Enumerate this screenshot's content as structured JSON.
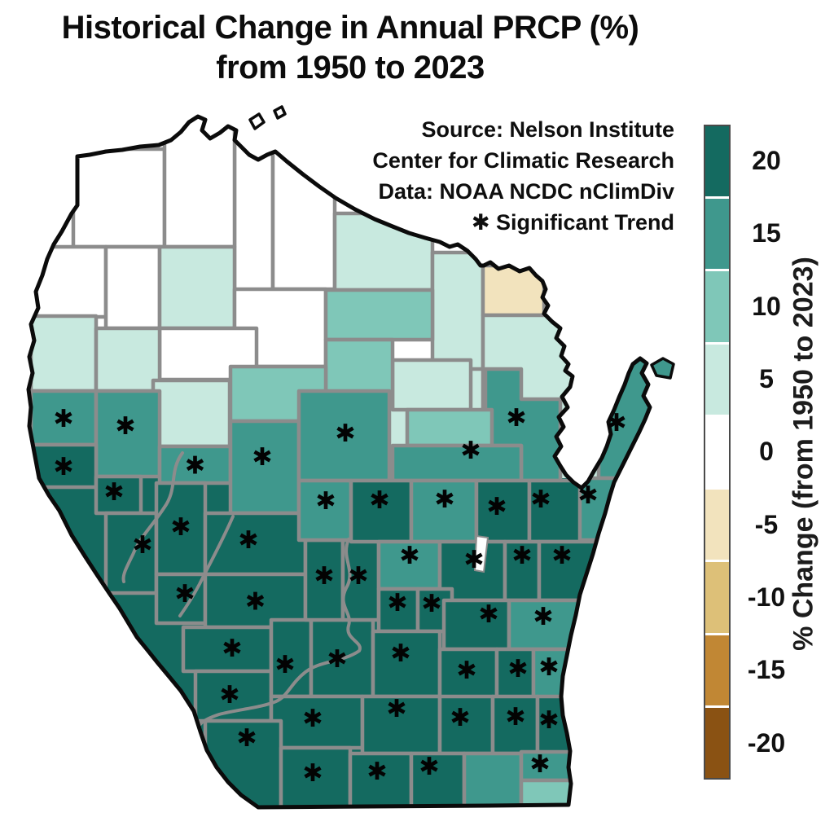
{
  "title": {
    "line1": "Historical Change in Annual PRCP (%)",
    "line2": "from 1950 to 2023"
  },
  "annotation": {
    "line1": "Source:  Nelson Institute",
    "line2": "Center for Climatic Research",
    "line3": "Data: NOAA NCDC nClimDiv",
    "significance_symbol": "✱",
    "significance_label": " Significant Trend"
  },
  "colorbar": {
    "title": "% Change (from 1950 to 2023)",
    "ticks": [
      "20",
      "15",
      "10",
      "5",
      "0",
      "-5",
      "-10",
      "-15",
      "-20"
    ],
    "colors": [
      "#146a60",
      "#3f988d",
      "#7fc7b8",
      "#c8e9df",
      "#ffffff",
      "#f2e3bd",
      "#ddc078",
      "#c18734",
      "#8a5213"
    ]
  },
  "chart_data": {
    "type": "choropleth",
    "region": "Wisconsin counties",
    "value_label": "% Change (from 1950 to 2023)",
    "legend_bins": [
      20,
      15,
      10,
      5,
      0,
      -5,
      -10,
      -15,
      -20
    ],
    "class_colors": {
      "20": "#146a60",
      "15": "#3f988d",
      "10": "#7fc7b8",
      "5": "#c8e9df",
      "0": "#ffffff",
      "-5": "#f2e3bd"
    },
    "border_color": "#8c8c8c",
    "outline_color": "#0b0b0b",
    "significant_symbol": "✱",
    "counties": [
      {
        "name": "Ashland",
        "value_bin": 0,
        "significant": false,
        "r": [
          288,
          148,
          47,
          242
        ]
      },
      {
        "name": "Douglas",
        "value_bin": 0,
        "significant": false,
        "r": [
          90,
          183,
          112,
          120
        ]
      },
      {
        "name": "Bayfield",
        "value_bin": 0,
        "significant": false,
        "r": [
          202,
          140,
          86,
          163
        ]
      },
      {
        "name": "Iron",
        "value_bin": 0,
        "significant": false,
        "r": [
          335,
          168,
          76,
          187
        ]
      },
      {
        "name": "Burnett",
        "value_bin": 0,
        "significant": false,
        "r": [
          38,
          303,
          92,
          86
        ]
      },
      {
        "name": "Washburn",
        "value_bin": 0,
        "significant": false,
        "r": [
          130,
          303,
          66,
          100
        ]
      },
      {
        "name": "Sawyer",
        "value_bin": 5,
        "significant": false,
        "r": [
          196,
          303,
          92,
          100
        ]
      },
      {
        "name": "Price",
        "value_bin": 0,
        "significant": false,
        "r": [
          288,
          355,
          112,
          95
        ]
      },
      {
        "name": "Rusk",
        "value_bin": 0,
        "significant": false,
        "r": [
          196,
          403,
          119,
          63
        ]
      },
      {
        "name": "Polk",
        "value_bin": 5,
        "significant": false,
        "r": [
          38,
          388,
          80,
          92
        ]
      },
      {
        "name": "Barron",
        "value_bin": 5,
        "significant": false,
        "r": [
          118,
          403,
          78,
          77
        ]
      },
      {
        "name": "Vilas",
        "value_bin": 5,
        "significant": false,
        "r": [
          411,
          262,
          120,
          94
        ]
      },
      {
        "name": "Forest",
        "value_bin": 5,
        "significant": false,
        "r": [
          531,
          310,
          62,
          143
        ]
      },
      {
        "name": "Oneida",
        "value_bin": 10,
        "significant": false,
        "r": [
          400,
          356,
          131,
          61
        ]
      },
      {
        "name": "Florence",
        "value_bin": -5,
        "significant": false,
        "r": [
          593,
          326,
          75,
          61
        ]
      },
      {
        "name": "Marinette",
        "value_bin": 5,
        "significant": false,
        "r": [
          593,
          387,
          115,
          138
        ]
      },
      {
        "name": "Oconto",
        "value_bin": 15,
        "significant": true,
        "p": "596,453 640,453 640,490 688,490 688,590 640,590 640,547 596,547",
        "s": [
          634,
          512
        ]
      },
      {
        "name": "Langlade",
        "value_bin": 5,
        "significant": false,
        "r": [
          482,
          442,
          96,
          61
        ]
      },
      {
        "name": "Lincoln",
        "value_bin": 10,
        "significant": false,
        "r": [
          400,
          417,
          82,
          85
        ]
      },
      {
        "name": "Taylor",
        "value_bin": 10,
        "significant": false,
        "r": [
          283,
          450,
          117,
          67
        ]
      },
      {
        "name": "Menominee",
        "value_bin": 10,
        "significant": false,
        "r": [
          500,
          503,
          104,
          44
        ]
      },
      {
        "name": "Shawano",
        "value_bin": 15,
        "significant": true,
        "r": [
          482,
          547,
          158,
          43
        ],
        "s": [
          578,
          552
        ]
      },
      {
        "name": "Chippewa",
        "value_bin": 5,
        "significant": false,
        "r": [
          188,
          467,
          94,
          81
        ]
      },
      {
        "name": "St. Croix",
        "value_bin": 15,
        "significant": true,
        "r": [
          38,
          480,
          80,
          66
        ]
      },
      {
        "name": "Dunn",
        "value_bin": 15,
        "significant": true,
        "r": [
          118,
          480,
          78,
          105
        ],
        "s": [
          154,
          522
        ]
      },
      {
        "name": "Eau Claire",
        "value_bin": 15,
        "significant": true,
        "r": [
          196,
          548,
          87,
          45
        ]
      },
      {
        "name": "Clark",
        "value_bin": 15,
        "significant": true,
        "r": [
          283,
          517,
          84,
          113
        ],
        "s": [
          322,
          560
        ]
      },
      {
        "name": "Marathon",
        "value_bin": 15,
        "significant": true,
        "r": [
          367,
          480,
          111,
          110
        ],
        "s": [
          424,
          531
        ]
      },
      {
        "name": "Pierce",
        "value_bin": 20,
        "significant": true,
        "r": [
          38,
          546,
          80,
          52
        ]
      },
      {
        "name": "Pepin",
        "value_bin": 20,
        "significant": true,
        "r": [
          118,
          585,
          55,
          45
        ],
        "s": [
          140,
          603
        ]
      },
      {
        "name": "Buffalo",
        "value_bin": 20,
        "significant": true,
        "r": [
          130,
          630,
          62,
          98
        ],
        "s": [
          175,
          668
        ]
      },
      {
        "name": "Trempealeau",
        "value_bin": 20,
        "significant": true,
        "r": [
          192,
          593,
          60,
          112
        ],
        "s": [
          222,
          646
        ]
      },
      {
        "name": "Jackson",
        "value_bin": 20,
        "significant": true,
        "r": [
          252,
          630,
          123,
          75
        ],
        "s": [
          305,
          662
        ]
      },
      {
        "name": "La Crosse",
        "value_bin": 20,
        "significant": true,
        "r": [
          192,
          705,
          60,
          60
        ],
        "s": [
          227,
          728
        ]
      },
      {
        "name": "Monroe",
        "value_bin": 20,
        "significant": true,
        "r": [
          252,
          705,
          123,
          65
        ]
      },
      {
        "name": "Vernon",
        "value_bin": 20,
        "significant": true,
        "r": [
          225,
          770,
          108,
          54
        ],
        "s": [
          285,
          795
        ]
      },
      {
        "name": "Crawford",
        "value_bin": 20,
        "significant": true,
        "r": [
          240,
          824,
          93,
          61
        ],
        "s": [
          282,
          852
        ]
      },
      {
        "name": "Richland",
        "value_bin": 20,
        "significant": true,
        "r": [
          333,
          761,
          49,
          94
        ],
        "s": [
          350,
          815
        ]
      },
      {
        "name": "Sauk",
        "value_bin": 20,
        "significant": true,
        "r": [
          382,
          761,
          76,
          94
        ],
        "s": [
          414,
          808
        ]
      },
      {
        "name": "Juneau",
        "value_bin": 20,
        "significant": true,
        "r": [
          375,
          663,
          46,
          98
        ],
        "s": [
          398,
          706
        ]
      },
      {
        "name": "Adams",
        "value_bin": 20,
        "significant": true,
        "r": [
          421,
          663,
          44,
          98
        ],
        "s": [
          440,
          706
        ]
      },
      {
        "name": "Wood",
        "value_bin": 15,
        "significant": true,
        "r": [
          367,
          590,
          64,
          73
        ],
        "s": [
          400,
          614
        ]
      },
      {
        "name": "Portage",
        "value_bin": 20,
        "significant": true,
        "r": [
          431,
          590,
          74,
          75
        ],
        "s": [
          466,
          613
        ]
      },
      {
        "name": "Waupaca",
        "value_bin": 15,
        "significant": true,
        "r": [
          505,
          590,
          80,
          75
        ],
        "s": [
          546,
          612
        ]
      },
      {
        "name": "Outagamie",
        "value_bin": 20,
        "significant": true,
        "r": [
          585,
          590,
          65,
          75
        ],
        "s": [
          610,
          621
        ]
      },
      {
        "name": "Brown",
        "value_bin": 20,
        "significant": true,
        "r": [
          650,
          590,
          65,
          75
        ],
        "s": [
          664,
          612
        ]
      },
      {
        "name": "Door",
        "value_bin": 15,
        "significant": true,
        "r": [
          735,
          432,
          100,
          155
        ],
        "s": [
          757,
          518
        ]
      },
      {
        "name": "Kewaunee",
        "value_bin": 15,
        "significant": true,
        "r": [
          712,
          587,
          48,
          76
        ],
        "s": [
          722,
          607
        ]
      },
      {
        "name": "Waushara",
        "value_bin": 15,
        "significant": true,
        "r": [
          465,
          665,
          75,
          58
        ],
        "s": [
          503,
          681
        ]
      },
      {
        "name": "Winnebago",
        "value_bin": 20,
        "significant": true,
        "r": [
          540,
          665,
          80,
          72
        ],
        "s": [
          582,
          686
        ]
      },
      {
        "name": "Calumet",
        "value_bin": 20,
        "significant": true,
        "r": [
          620,
          665,
          42,
          72
        ],
        "s": [
          641,
          681
        ]
      },
      {
        "name": "Manitowoc",
        "value_bin": 20,
        "significant": true,
        "r": [
          662,
          665,
          75,
          72
        ],
        "s": [
          690,
          681
        ]
      },
      {
        "name": "Marquette",
        "value_bin": 20,
        "significant": true,
        "r": [
          465,
          723,
          48,
          52
        ],
        "s": [
          488,
          739
        ]
      },
      {
        "name": "Green Lake",
        "value_bin": 20,
        "significant": true,
        "r": [
          513,
          723,
          42,
          52
        ],
        "s": [
          530,
          740
        ]
      },
      {
        "name": "Fond du Lac",
        "value_bin": 20,
        "significant": true,
        "r": [
          545,
          737,
          80,
          60
        ],
        "s": [
          600,
          753
        ]
      },
      {
        "name": "Sheboygan",
        "value_bin": 15,
        "significant": true,
        "r": [
          625,
          737,
          85,
          60
        ],
        "s": [
          667,
          756
        ]
      },
      {
        "name": "Columbia",
        "value_bin": 20,
        "significant": true,
        "r": [
          458,
          775,
          82,
          80
        ],
        "s": [
          492,
          801
        ]
      },
      {
        "name": "Dodge",
        "value_bin": 20,
        "significant": true,
        "r": [
          540,
          797,
          70,
          60
        ],
        "s": [
          573,
          822
        ]
      },
      {
        "name": "Washington",
        "value_bin": 20,
        "significant": true,
        "r": [
          610,
          797,
          45,
          62
        ],
        "s": [
          636,
          820
        ]
      },
      {
        "name": "Ozaukee",
        "value_bin": 15,
        "significant": true,
        "r": [
          655,
          797,
          45,
          62
        ],
        "s": [
          674,
          818
        ]
      },
      {
        "name": "Iowa",
        "value_bin": 20,
        "significant": true,
        "r": [
          333,
          855,
          112,
          63
        ],
        "s": [
          384,
          881
        ]
      },
      {
        "name": "Dane",
        "value_bin": 20,
        "significant": true,
        "r": [
          445,
          855,
          95,
          70
        ],
        "s": [
          487,
          869
        ]
      },
      {
        "name": "Jefferson",
        "value_bin": 20,
        "significant": true,
        "r": [
          540,
          855,
          65,
          70
        ],
        "s": [
          565,
          880
        ]
      },
      {
        "name": "Waukesha",
        "value_bin": 20,
        "significant": true,
        "r": [
          605,
          855,
          55,
          70
        ],
        "s": [
          633,
          879
        ]
      },
      {
        "name": "Milwaukee",
        "value_bin": 20,
        "significant": true,
        "r": [
          660,
          855,
          40,
          70
        ],
        "s": [
          674,
          883
        ]
      },
      {
        "name": "Grant",
        "value_bin": 20,
        "significant": true,
        "r": [
          252,
          885,
          93,
          107
        ],
        "s": [
          303,
          905
        ]
      },
      {
        "name": "Lafayette",
        "value_bin": 20,
        "significant": true,
        "r": [
          345,
          918,
          85,
          74
        ],
        "s": [
          384,
          948
        ]
      },
      {
        "name": "Green",
        "value_bin": 20,
        "significant": true,
        "r": [
          430,
          925,
          75,
          67
        ],
        "s": [
          463,
          946
        ]
      },
      {
        "name": "Rock",
        "value_bin": 20,
        "significant": true,
        "r": [
          505,
          925,
          65,
          67
        ],
        "s": [
          527,
          940
        ]
      },
      {
        "name": "Walworth",
        "value_bin": 15,
        "significant": false,
        "r": [
          570,
          925,
          70,
          67
        ]
      },
      {
        "name": "Racine",
        "value_bin": 15,
        "significant": true,
        "r": [
          640,
          923,
          62,
          35
        ],
        "s": [
          663,
          937
        ]
      },
      {
        "name": "Kenosha",
        "value_bin": 10,
        "significant": false,
        "r": [
          640,
          958,
          62,
          34
        ]
      }
    ]
  }
}
